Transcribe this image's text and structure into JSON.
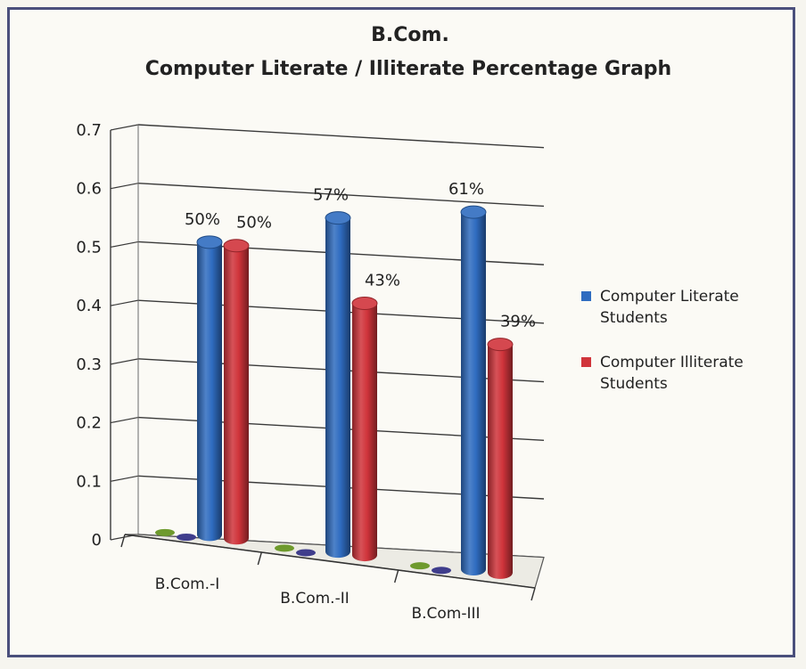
{
  "chart_data": {
    "type": "bar",
    "title": "B.Com.",
    "subtitle": "Computer Literate / Illiterate Percentage Graph",
    "categories": [
      "B.Com.-I",
      "B.Com.-II",
      "B.Com-III"
    ],
    "series": [
      {
        "name": "Computer Literate Students",
        "color": "#2f6cc0",
        "values": [
          0.5,
          0.57,
          0.61
        ],
        "labels": [
          "50%",
          "57%",
          "61%"
        ]
      },
      {
        "name": "Computer Illiterate Students",
        "color": "#d0343b",
        "values": [
          0.5,
          0.43,
          0.39
        ],
        "labels": [
          "50%",
          "43%",
          "39%"
        ]
      }
    ],
    "yticks": [
      "0",
      "0.1",
      "0.2",
      "0.3",
      "0.4",
      "0.5",
      "0.6",
      "0.7"
    ],
    "ylim": [
      0,
      0.7
    ],
    "grid": true,
    "legend": "right"
  }
}
